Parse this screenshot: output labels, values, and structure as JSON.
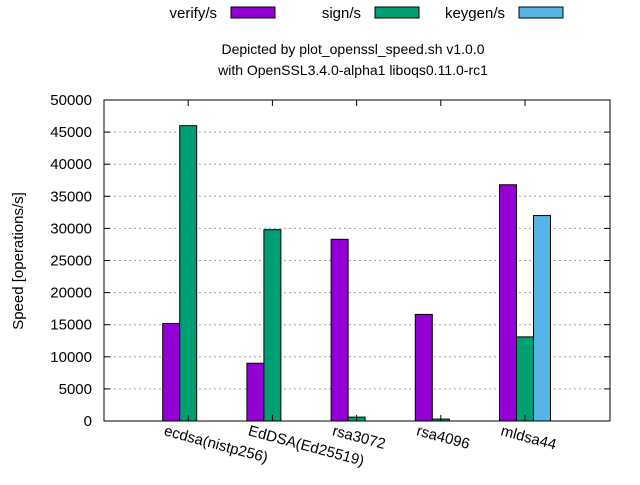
{
  "chart_data": {
    "type": "bar",
    "title_line1": "Depicted by plot_openssl_speed.sh v1.0.0",
    "title_line2": "with OpenSSL3.4.0-alpha1 liboqs0.11.0-rc1",
    "xlabel": "",
    "ylabel": "Speed [operations/s]",
    "ylim": [
      0,
      50000
    ],
    "ytick_step": 5000,
    "yticks": [
      "0",
      "5000",
      "10000",
      "15000",
      "20000",
      "25000",
      "30000",
      "35000",
      "40000",
      "45000",
      "50000"
    ],
    "grid": true,
    "legend_position": "top",
    "categories": [
      "ecdsa(nistp256)",
      "EdDSA(Ed25519)",
      "rsa3072",
      "rsa4096",
      "mldsa44"
    ],
    "series": [
      {
        "name": "verify/s",
        "color": "#9400d3",
        "values": [
          15200,
          9000,
          28300,
          16600,
          36800
        ]
      },
      {
        "name": "sign/s",
        "color": "#009e73",
        "values": [
          46000,
          29800,
          600,
          300,
          13100
        ]
      },
      {
        "name": "keygen/s",
        "color": "#56b4e9",
        "values": [
          null,
          null,
          null,
          null,
          32000
        ]
      }
    ]
  }
}
